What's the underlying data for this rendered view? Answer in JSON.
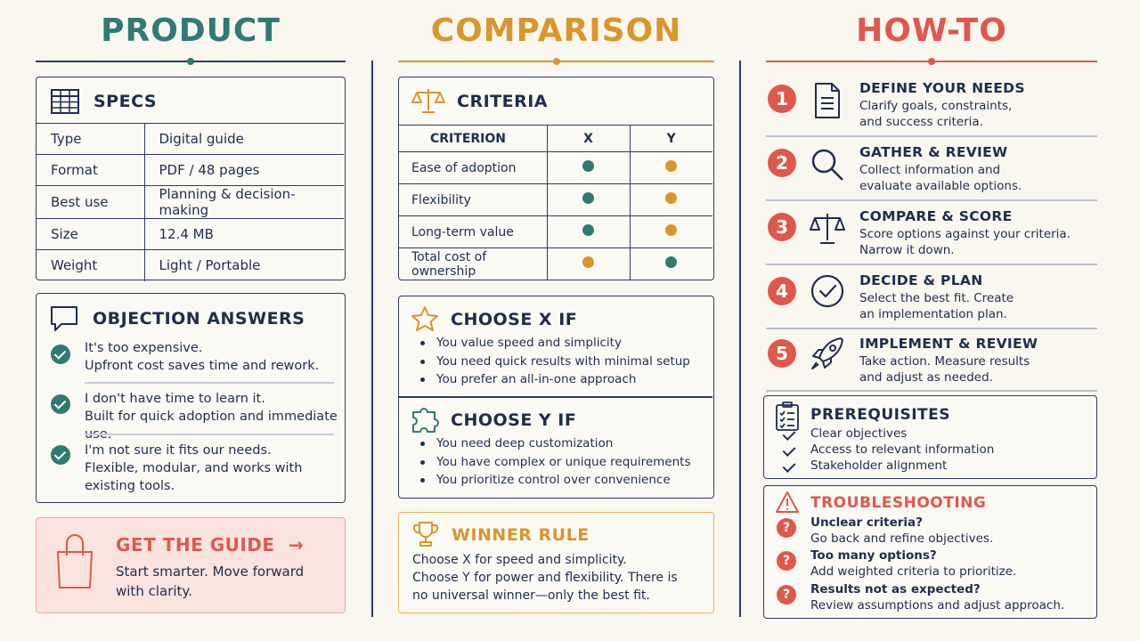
{
  "columns": {
    "product": {
      "title": "PRODUCT",
      "color": "#2f7a72"
    },
    "comparison": {
      "title": "COMPARISON",
      "color": "#d9962a"
    },
    "howto": {
      "title": "HOW-TO",
      "color": "#e0584c"
    }
  },
  "specs": {
    "title": "SPECS",
    "icon": "table-grid-icon",
    "rows": [
      {
        "key": "Type",
        "value": "Digital guide"
      },
      {
        "key": "Format",
        "value": "PDF / 48 pages"
      },
      {
        "key": "Best use",
        "value": "Planning & decision-making"
      },
      {
        "key": "Size",
        "value": "12.4 MB"
      },
      {
        "key": "Weight",
        "value": "Light / Portable"
      }
    ]
  },
  "objections": {
    "title": "OBJECTION ANSWERS",
    "icon": "speech-bubble-icon",
    "items": [
      {
        "objection": "It's too expensive.",
        "answer": "Upfront cost saves time and rework."
      },
      {
        "objection": "I don't have time to learn it.",
        "answer": "Built for quick adoption and immediate use."
      },
      {
        "objection": "I'm not sure it fits our needs.",
        "answer": "Flexible, modular, and works with",
        "answer2": "existing tools."
      }
    ]
  },
  "cta": {
    "title": "GET THE GUIDE",
    "arrow": "→",
    "line1": "Start smarter. Move forward",
    "line2": "with clarity.",
    "icon": "shopping-bag-icon"
  },
  "criteria": {
    "title": "CRITERIA",
    "icon": "scales-icon",
    "headers": [
      "CRITERION",
      "X",
      "Y"
    ],
    "rows": [
      {
        "label": "Ease of adoption",
        "x": "green",
        "y": "orange"
      },
      {
        "label": "Flexibility",
        "x": "green",
        "y": "orange"
      },
      {
        "label": "Long-term value",
        "x": "green",
        "y": "orange"
      },
      {
        "label": "Total cost of ownership",
        "x": "orange",
        "y": "green"
      }
    ],
    "colors": {
      "green": "#2f7a72",
      "orange": "#d9962a"
    }
  },
  "choose_x": {
    "title": "CHOOSE X IF",
    "icon": "star-icon",
    "bullets": [
      "You value speed and simplicity",
      "You need quick results with minimal setup",
      "You prefer an all-in-one approach"
    ]
  },
  "choose_y": {
    "title": "CHOOSE Y IF",
    "icon": "puzzle-icon",
    "bullets": [
      "You need deep customization",
      "You have complex or unique requirements",
      "You prioritize control over convenience"
    ]
  },
  "winner": {
    "title": "WINNER RULE",
    "icon": "trophy-icon",
    "line1": "Choose X for speed and simplicity.",
    "line2": "Choose Y for power and flexibility. There is",
    "line3": "no universal winner—only the best fit."
  },
  "steps": [
    {
      "num": "1",
      "title": "DEFINE YOUR NEEDS",
      "d1": "Clarify goals, constraints,",
      "d2": "and success criteria.",
      "icon": "document-icon"
    },
    {
      "num": "2",
      "title": "GATHER & REVIEW",
      "d1": "Collect information and",
      "d2": "evaluate available options.",
      "icon": "magnifier-icon"
    },
    {
      "num": "3",
      "title": "COMPARE & SCORE",
      "d1": "Score options against your criteria.",
      "d2": "Narrow it down.",
      "icon": "scales-icon"
    },
    {
      "num": "4",
      "title": "DECIDE & PLAN",
      "d1": "Select the best fit. Create",
      "d2": "an implementation plan.",
      "icon": "check-circle-icon"
    },
    {
      "num": "5",
      "title": "IMPLEMENT & REVIEW",
      "d1": "Take action. Measure results",
      "d2": "and adjust as needed.",
      "icon": "rocket-icon"
    }
  ],
  "prereq": {
    "title": "PREREQUISITES",
    "icon": "clipboard-checklist-icon",
    "items": [
      "Clear objectives",
      "Access to relevant information",
      "Stakeholder alignment"
    ]
  },
  "trouble": {
    "title": "TROUBLESHOOTING",
    "icon": "warning-triangle-icon",
    "items": [
      {
        "q": "Unclear criteria?",
        "a": "Go back and refine objectives."
      },
      {
        "q": "Too many options?",
        "a": "Add weighted criteria to prioritize."
      },
      {
        "q": "Results not as expected?",
        "a": "Review assumptions and adjust approach."
      }
    ]
  }
}
